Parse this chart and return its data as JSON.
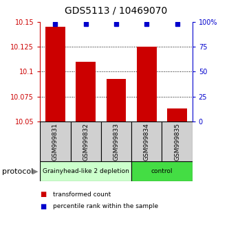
{
  "title": "GDS5113 / 10469070",
  "samples": [
    "GSM999831",
    "GSM999832",
    "GSM999833",
    "GSM999834",
    "GSM999835"
  ],
  "bar_values": [
    10.145,
    10.11,
    10.093,
    10.125,
    10.063
  ],
  "bar_bottom": 10.05,
  "percentile_values": [
    98,
    98,
    98,
    98,
    98
  ],
  "bar_color": "#cc0000",
  "marker_color": "#0000cc",
  "ylim_left": [
    10.05,
    10.15
  ],
  "ylim_right": [
    0,
    100
  ],
  "yticks_left": [
    10.05,
    10.075,
    10.1,
    10.125,
    10.15
  ],
  "yticks_right": [
    0,
    25,
    50,
    75,
    100
  ],
  "ytick_labels_left": [
    "10.05",
    "10.075",
    "10.1",
    "10.125",
    "10.15"
  ],
  "ytick_labels_right": [
    "0",
    "25",
    "50",
    "75",
    "100%"
  ],
  "protocol_groups": [
    {
      "label": "Grainyhead-like 2 depletion",
      "indices": [
        0,
        1,
        2
      ],
      "color": "#ccffcc"
    },
    {
      "label": "control",
      "indices": [
        3,
        4
      ],
      "color": "#44dd44"
    }
  ],
  "protocol_label": "protocol",
  "legend_items": [
    {
      "label": "transformed count",
      "color": "#cc0000"
    },
    {
      "label": "percentile rank within the sample",
      "color": "#0000cc"
    }
  ],
  "background_color": "#ffffff",
  "sample_box_color": "#d0d0d0",
  "bar_width": 0.65
}
